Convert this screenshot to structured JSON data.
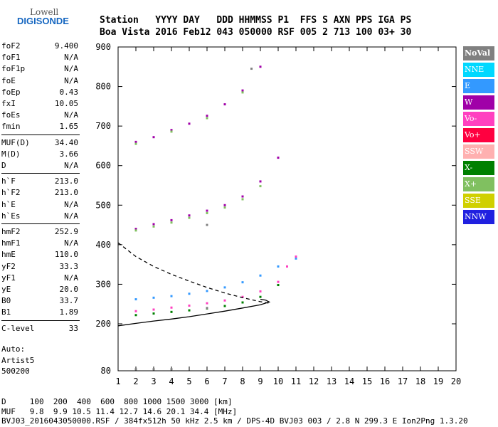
{
  "logo": {
    "line1": "Lowell",
    "line2": "DIGISONDE"
  },
  "header": {
    "line1": "Station   YYYY DAY   DDD HHMMSS P1  FFS S AXN PPS IGA PS",
    "line2": "Boa Vista 2016 Feb12 043 050000 RSF 005 2 713 100 03+ 30"
  },
  "params": [
    {
      "k": "foF2",
      "v": "9.400"
    },
    {
      "k": "foF1",
      "v": "N/A"
    },
    {
      "k": "foF1p",
      "v": "N/A"
    },
    {
      "k": "foE",
      "v": "N/A"
    },
    {
      "k": "foEp",
      "v": "0.43"
    },
    {
      "k": "fxI",
      "v": "10.05"
    },
    {
      "k": "foEs",
      "v": "N/A"
    },
    {
      "k": "fmin",
      "v": "1.65"
    },
    {
      "k": "MUF(D)",
      "v": "34.40"
    },
    {
      "k": "M(D)",
      "v": "3.66"
    },
    {
      "k": "D",
      "v": "N/A"
    },
    {
      "k": "h`F",
      "v": "213.0"
    },
    {
      "k": "h`F2",
      "v": "213.0"
    },
    {
      "k": "h`E",
      "v": "N/A"
    },
    {
      "k": "h`Es",
      "v": "N/A"
    },
    {
      "k": "hmF2",
      "v": "252.9"
    },
    {
      "k": "hmF1",
      "v": "N/A"
    },
    {
      "k": "hmE",
      "v": "110.0"
    },
    {
      "k": "yF2",
      "v": "33.3"
    },
    {
      "k": "yF1",
      "v": "N/A"
    },
    {
      "k": "yE",
      "v": "20.0"
    },
    {
      "k": "B0",
      "v": "33.7"
    },
    {
      "k": "B1",
      "v": "1.89"
    },
    {
      "k": "C-level",
      "v": "33"
    }
  ],
  "auto": {
    "l1": "Auto:",
    "l2": "Artist5",
    "l3": "500200"
  },
  "legend": [
    {
      "label": "NoVal",
      "color": "#808080"
    },
    {
      "label": "NNE",
      "color": "#00d8ff"
    },
    {
      "label": "E",
      "color": "#3399ff"
    },
    {
      "label": "W",
      "color": "#a000a8"
    },
    {
      "label": "Vo-",
      "color": "#ff40c0"
    },
    {
      "label": "Vo+",
      "color": "#ff0040"
    },
    {
      "label": "SSW",
      "color": "#ffb0b0"
    },
    {
      "label": "X-",
      "color": "#008000"
    },
    {
      "label": "X+",
      "color": "#80c060"
    },
    {
      "label": "SSE",
      "color": "#d0d000"
    },
    {
      "label": "NNW",
      "color": "#2020e0"
    }
  ],
  "footer": {
    "l1": "D     100  200  400  600  800 1000 1500 3000 [km]",
    "l2": "MUF   9.8  9.9 10.5 11.4 12.7 14.6 20.1 34.4 [MHz]",
    "l3": "BVJ03_2016043050000.RSF / 384fx512h 50 kHz 2.5 km / DPS-4D BVJ03 003 / 2.8 N 299.3 E Ion2Png 1.3.20"
  },
  "chart_data": {
    "type": "scatter",
    "xlim": [
      1,
      20
    ],
    "ylim": [
      80,
      900
    ],
    "x_ticks": [
      1,
      2,
      3,
      4,
      5,
      6,
      7,
      8,
      9,
      10,
      11,
      12,
      13,
      14,
      15,
      16,
      17,
      18,
      19,
      20
    ],
    "y_ticks": [
      80,
      200,
      300,
      400,
      500,
      600,
      700,
      800,
      900
    ],
    "series": [
      {
        "name": "E",
        "color": "#3399ff",
        "points": [
          [
            2,
            262
          ],
          [
            3,
            266
          ],
          [
            4,
            270
          ],
          [
            5,
            276
          ],
          [
            6,
            283
          ],
          [
            7,
            292
          ],
          [
            8,
            305
          ],
          [
            9,
            322
          ],
          [
            10,
            345
          ],
          [
            11,
            365
          ]
        ]
      },
      {
        "name": "Vo-",
        "color": "#ff40c0",
        "points": [
          [
            2,
            232
          ],
          [
            3,
            236
          ],
          [
            4,
            241
          ],
          [
            5,
            246
          ],
          [
            6,
            252
          ],
          [
            7,
            259
          ],
          [
            8,
            268
          ],
          [
            9,
            282
          ],
          [
            10,
            306
          ],
          [
            10.5,
            345
          ],
          [
            11,
            370
          ]
        ]
      },
      {
        "name": "X-",
        "color": "#008000",
        "points": [
          [
            2,
            222
          ],
          [
            3,
            226
          ],
          [
            4,
            230
          ],
          [
            5,
            234
          ],
          [
            6,
            239
          ],
          [
            7,
            245
          ],
          [
            8,
            254
          ],
          [
            9,
            268
          ],
          [
            10,
            298
          ]
        ]
      },
      {
        "name": "W",
        "color": "#a000a8",
        "points": [
          [
            2,
            440
          ],
          [
            3,
            452
          ],
          [
            4,
            462
          ],
          [
            5,
            474
          ],
          [
            6,
            486
          ],
          [
            7,
            500
          ],
          [
            8,
            522
          ],
          [
            9,
            560
          ],
          [
            10,
            620
          ],
          [
            2,
            660
          ],
          [
            3,
            672
          ],
          [
            4,
            690
          ],
          [
            5,
            706
          ],
          [
            6,
            726
          ],
          [
            7,
            755
          ],
          [
            8,
            790
          ],
          [
            9,
            850
          ]
        ]
      },
      {
        "name": "X+",
        "color": "#80c060",
        "points": [
          [
            2,
            436
          ],
          [
            3,
            446
          ],
          [
            4,
            456
          ],
          [
            5,
            468
          ],
          [
            6,
            480
          ],
          [
            7,
            494
          ],
          [
            8,
            515
          ],
          [
            9,
            548
          ],
          [
            2,
            655
          ],
          [
            4,
            686
          ],
          [
            6,
            720
          ],
          [
            8,
            785
          ]
        ]
      },
      {
        "name": "NoVal",
        "color": "#808080",
        "points": [
          [
            2,
            84
          ],
          [
            3,
            84
          ],
          [
            4,
            84
          ],
          [
            6,
            450
          ],
          [
            6,
            240
          ],
          [
            8.5,
            845
          ]
        ]
      }
    ],
    "curves": [
      {
        "style": "solid",
        "points": [
          [
            1,
            195
          ],
          [
            2,
            201
          ],
          [
            3,
            207
          ],
          [
            4,
            212
          ],
          [
            5,
            218
          ],
          [
            6,
            225
          ],
          [
            7,
            232
          ],
          [
            8,
            240
          ],
          [
            9,
            248
          ],
          [
            9.5,
            255
          ],
          [
            9.3,
            260
          ],
          [
            9,
            262
          ]
        ]
      },
      {
        "style": "dashed",
        "points": [
          [
            1,
            405
          ],
          [
            2,
            370
          ],
          [
            3,
            345
          ],
          [
            4,
            325
          ],
          [
            5,
            308
          ],
          [
            6,
            292
          ],
          [
            7,
            278
          ],
          [
            8,
            266
          ],
          [
            9,
            256
          ],
          [
            9.5,
            252
          ]
        ]
      }
    ]
  }
}
